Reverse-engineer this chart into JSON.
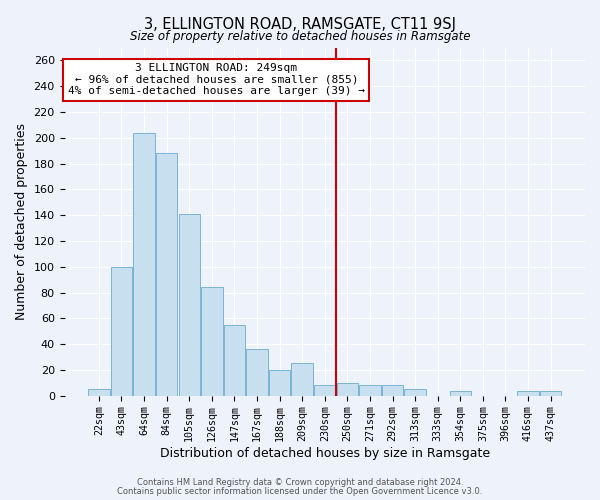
{
  "title": "3, ELLINGTON ROAD, RAMSGATE, CT11 9SJ",
  "subtitle": "Size of property relative to detached houses in Ramsgate",
  "xlabel": "Distribution of detached houses by size in Ramsgate",
  "ylabel": "Number of detached properties",
  "footer1": "Contains HM Land Registry data © Crown copyright and database right 2024.",
  "footer2": "Contains public sector information licensed under the Open Government Licence v3.0.",
  "bar_labels": [
    "22sqm",
    "43sqm",
    "64sqm",
    "84sqm",
    "105sqm",
    "126sqm",
    "147sqm",
    "167sqm",
    "188sqm",
    "209sqm",
    "230sqm",
    "250sqm",
    "271sqm",
    "292sqm",
    "313sqm",
    "333sqm",
    "354sqm",
    "375sqm",
    "396sqm",
    "416sqm",
    "437sqm"
  ],
  "bar_values": [
    5,
    100,
    204,
    188,
    141,
    84,
    55,
    36,
    20,
    25,
    8,
    10,
    8,
    8,
    5,
    0,
    4,
    0,
    0,
    4,
    4
  ],
  "bar_color": "#c8dff0",
  "bar_edge_color": "#7ab4d4",
  "vline_x_index": 10.5,
  "vline_color": "#cc0000",
  "annotation_title": "3 ELLINGTON ROAD: 249sqm",
  "annotation_line1": "← 96% of detached houses are smaller (855)",
  "annotation_line2": "4% of semi-detached houses are larger (39) →",
  "annotation_box_edge": "#cc0000",
  "ylim": [
    0,
    270
  ],
  "yticks": [
    0,
    20,
    40,
    60,
    80,
    100,
    120,
    140,
    160,
    180,
    200,
    220,
    240,
    260
  ],
  "background_color": "#eef2fb",
  "plot_background": "#eef2fb",
  "grid_color": "#ffffff"
}
